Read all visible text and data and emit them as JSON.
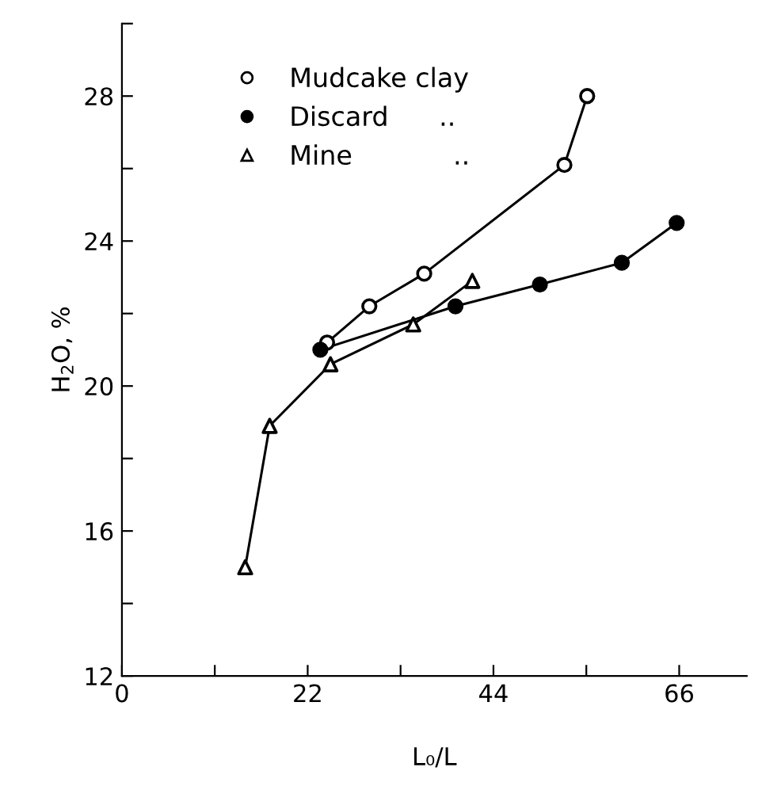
{
  "chart_data": {
    "type": "line",
    "xlabel": "L₀/L",
    "ylabel": "H$_{2}$O, %",
    "xlim": [
      0,
      74
    ],
    "ylim": [
      12,
      30
    ],
    "xticks": [
      0,
      {
        "value": 11,
        "label": null
      },
      22,
      {
        "value": 33,
        "label": null
      },
      44,
      {
        "value": 55,
        "label": null
      },
      66
    ],
    "yticks": [
      12,
      {
        "value": 14,
        "label": null
      },
      16,
      {
        "value": 18,
        "label": null
      },
      20,
      {
        "value": 22,
        "label": null
      },
      24,
      {
        "value": 26,
        "label": null
      },
      28,
      {
        "value": 30,
        "label": null
      }
    ],
    "grid": false,
    "legend": "top left",
    "line_style": "solid",
    "series": [
      {
        "name": "Mudcake clay",
        "color": "#000000",
        "marker": "circle",
        "colors": [
          "#ffffff",
          "#ffffff",
          "#ffffff",
          "#ffffff",
          "#ffffff"
        ],
        "x": [
          24.3,
          29.3,
          35.8,
          52.4,
          55.1
        ],
        "values": [
          21.2,
          22.2,
          23.1,
          26.1,
          28.0
        ]
      },
      {
        "name": "Discard      ..",
        "color": "#000000",
        "marker": "circle",
        "colors": [
          "#000000",
          "#000000",
          "#000000",
          "#000000",
          "#000000"
        ],
        "x": [
          23.5,
          39.5,
          49.5,
          59.2,
          65.7
        ],
        "values": [
          21.0,
          22.2,
          22.8,
          23.4,
          24.5
        ]
      },
      {
        "name": "Mine            ..",
        "color": "#000000",
        "marker": "triangle",
        "colors": [
          "#ffffff",
          "#ffffff",
          "#ffffff",
          "#ffffff",
          "#ffffff"
        ],
        "x": [
          14.6,
          17.5,
          24.7,
          34.5,
          41.5
        ],
        "values": [
          15.0,
          18.9,
          20.6,
          21.7,
          22.9
        ]
      }
    ]
  }
}
